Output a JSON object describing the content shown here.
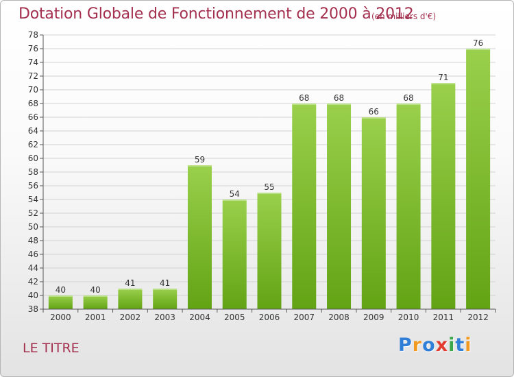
{
  "title": "Dotation Globale de Fonctionnement de 2000 à 2012",
  "subtitle": "(en milliers d'€)",
  "commune": "LE TITRE",
  "logo": {
    "letters": [
      {
        "ch": "P",
        "color": "#2f7fd8"
      },
      {
        "ch": "r",
        "color": "#f29a1f"
      },
      {
        "ch": "o",
        "color": "#2f7fd8"
      },
      {
        "ch": "x",
        "color": "#e23b2f"
      },
      {
        "ch": "i",
        "color": "#3aa84a"
      },
      {
        "ch": "t",
        "color": "#2f7fd8"
      },
      {
        "ch": "i",
        "color": "#f29a1f"
      }
    ]
  },
  "colors": {
    "bar_top": "#9ad04c",
    "bar_bottom": "#62a314",
    "title": "#a3304f",
    "grid": "#d2d2d2",
    "axis": "#555555",
    "text": "#333333"
  },
  "chart_data": {
    "type": "bar",
    "categories": [
      "2000",
      "2001",
      "2002",
      "2003",
      "2004",
      "2005",
      "2006",
      "2007",
      "2008",
      "2009",
      "2010",
      "2011",
      "2012"
    ],
    "values": [
      40,
      40,
      41,
      41,
      59,
      54,
      55,
      68,
      68,
      66,
      68,
      71,
      76
    ],
    "data_labels": [
      "40",
      "40",
      "41",
      "41",
      "59",
      "54",
      "55",
      "68",
      "68",
      "66",
      "68",
      "71",
      "76"
    ],
    "ylim": [
      38,
      78
    ],
    "y_ticks": [
      38,
      40,
      42,
      44,
      46,
      48,
      50,
      52,
      54,
      56,
      58,
      60,
      62,
      64,
      66,
      68,
      70,
      72,
      74,
      76,
      78
    ],
    "grid": true,
    "legend": "none"
  }
}
